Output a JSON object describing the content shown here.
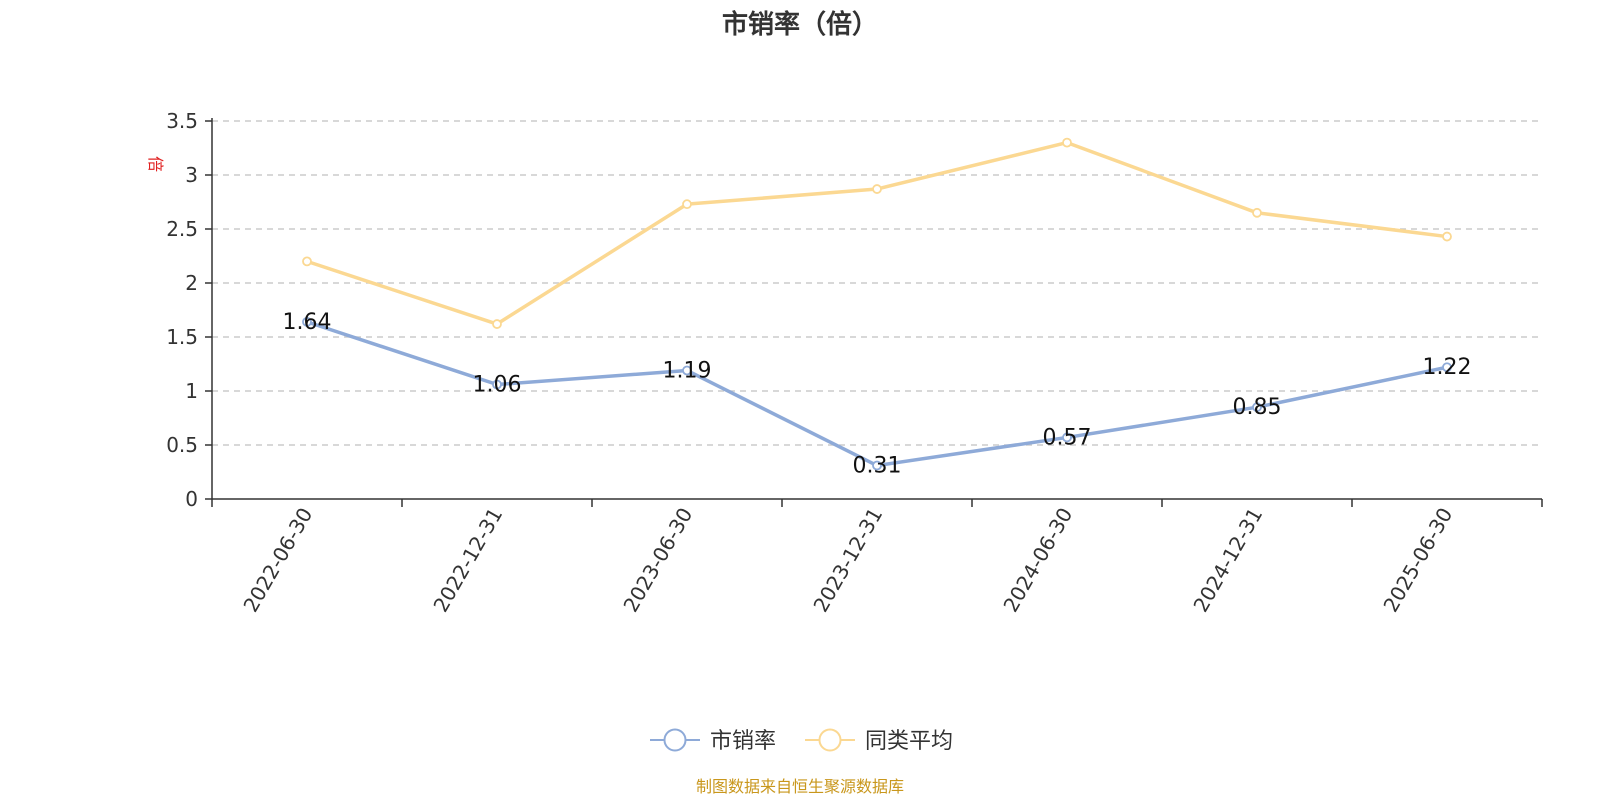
{
  "chart_data": {
    "type": "line",
    "title": "市销率（倍）",
    "ylabel": "倍",
    "categories": [
      "2022-06-30",
      "2022-12-31",
      "2023-06-30",
      "2023-12-31",
      "2024-06-30",
      "2024-12-31",
      "2025-06-30"
    ],
    "ylim": [
      0,
      3.5
    ],
    "yticks": [
      "0",
      "0.5",
      "1",
      "1.5",
      "2",
      "2.5",
      "3",
      "3.5"
    ],
    "grid": true,
    "legend_position": "bottom-center",
    "series": [
      {
        "name": "市销率",
        "color": "#8eaad8",
        "values": [
          1.64,
          1.06,
          1.19,
          0.31,
          0.57,
          0.85,
          1.22
        ],
        "labels": [
          "1.64",
          "1.06",
          "1.19",
          "0.31",
          "0.57",
          "0.85",
          "1.22"
        ]
      },
      {
        "name": "同类平均",
        "color": "#fbd892",
        "values": [
          2.2,
          1.62,
          2.73,
          2.87,
          3.3,
          2.65,
          2.43
        ]
      }
    ],
    "source": "制图数据来自恒生聚源数据库"
  }
}
